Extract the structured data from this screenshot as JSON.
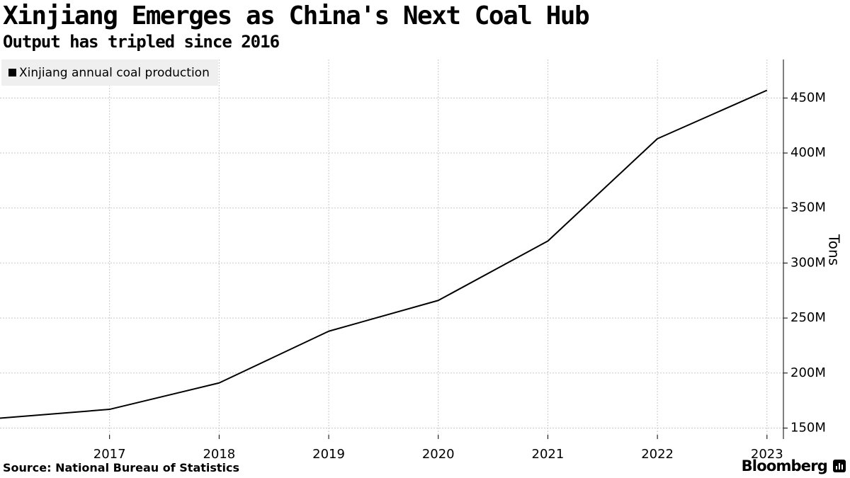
{
  "chart_data": {
    "type": "line",
    "title": "Xinjiang Emerges as China's Next Coal Hub",
    "subtitle": "Output has tripled since 2016",
    "x": [
      2016,
      2017,
      2018,
      2019,
      2020,
      2021,
      2022,
      2023
    ],
    "x_tick_labels": [
      "2017",
      "2018",
      "2019",
      "2020",
      "2021",
      "2022",
      "2023"
    ],
    "series": [
      {
        "name": "Xinjiang annual coal production",
        "values": [
          159,
          167,
          191,
          238,
          266,
          320,
          413,
          457
        ]
      }
    ],
    "y_unit": "M",
    "ylabel": "Tons",
    "y_ticks": [
      150,
      200,
      250,
      300,
      350,
      400,
      450
    ],
    "y_tick_labels": [
      "150M",
      "200M",
      "250M",
      "300M",
      "350M",
      "400M",
      "450M"
    ],
    "ylim": [
      140,
      485
    ],
    "xlim": [
      2016,
      2023.15
    ],
    "grid": true,
    "y_axis_side": "right",
    "legend_position": "top-left",
    "line_color": "#000000",
    "grid_color": "#c8c8c8"
  },
  "footer": {
    "source": "Source: National Bureau of Statistics",
    "brand": "Bloomberg"
  }
}
